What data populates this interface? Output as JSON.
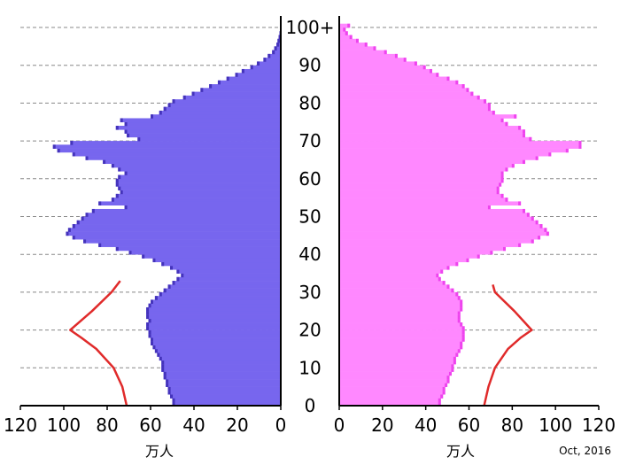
{
  "chart_data": {
    "type": "bar",
    "subtype": "population-pyramid",
    "unit_label": "万人",
    "date_note": "Oct, 2016",
    "age_axis": {
      "ticks": [
        "0",
        "10",
        "20",
        "30",
        "40",
        "50",
        "60",
        "70",
        "80",
        "90",
        "100+"
      ],
      "range": [
        0,
        100
      ],
      "gridlines": "dashed"
    },
    "x_ticks_left": [
      "120",
      "100",
      "80",
      "60",
      "40",
      "20",
      "0"
    ],
    "x_ticks_right": [
      "0",
      "20",
      "40",
      "60",
      "80",
      "100",
      "120"
    ],
    "xlim": [
      0,
      120
    ],
    "colors": {
      "male_fill": "#7766ee",
      "male_edge": "#4433bb",
      "female_fill": "#ff88ff",
      "female_edge": "#ee44ee",
      "overlay_line": "#e02a2a"
    },
    "series": [
      {
        "side": "left",
        "ages": [
          0,
          1,
          2,
          3,
          4,
          5,
          6,
          7,
          8,
          9,
          10,
          11,
          12,
          13,
          14,
          15,
          16,
          17,
          18,
          19,
          20,
          21,
          22,
          23,
          24,
          25,
          26,
          27,
          28,
          29,
          30,
          31,
          32,
          33,
          34,
          35,
          36,
          37,
          38,
          39,
          40,
          41,
          42,
          43,
          44,
          45,
          46,
          47,
          48,
          49,
          50,
          51,
          52,
          53,
          54,
          55,
          56,
          57,
          58,
          59,
          60,
          61,
          62,
          63,
          64,
          65,
          66,
          67,
          68,
          69,
          70,
          71,
          72,
          73,
          74,
          75,
          76,
          77,
          78,
          79,
          80,
          81,
          82,
          83,
          84,
          85,
          86,
          87,
          88,
          89,
          90,
          91,
          92,
          93,
          94,
          95,
          96,
          97,
          98,
          99,
          100
        ],
        "values": [
          50,
          50,
          51,
          52,
          52,
          53,
          53,
          54,
          54,
          55,
          55,
          55,
          56,
          57,
          58,
          59,
          60,
          60,
          61,
          61,
          62,
          62,
          61,
          62,
          62,
          62,
          61,
          60,
          58,
          56,
          54,
          52,
          50,
          48,
          46,
          48,
          51,
          55,
          59,
          64,
          70,
          76,
          84,
          91,
          96,
          99,
          98,
          96,
          94,
          92,
          90,
          87,
          72,
          84,
          78,
          76,
          74,
          75,
          76,
          76,
          75,
          72,
          75,
          78,
          82,
          90,
          96,
          103,
          105,
          97,
          66,
          71,
          72,
          76,
          72,
          74,
          60,
          56,
          54,
          52,
          50,
          45,
          41,
          37,
          33,
          29,
          25,
          21,
          18,
          14,
          11,
          8,
          6,
          4,
          3,
          2,
          1.5,
          1,
          0.6,
          0.3,
          0.2
        ]
      },
      {
        "side": "right",
        "ages": [
          0,
          1,
          2,
          3,
          4,
          5,
          6,
          7,
          8,
          9,
          10,
          11,
          12,
          13,
          14,
          15,
          16,
          17,
          18,
          19,
          20,
          21,
          22,
          23,
          24,
          25,
          26,
          27,
          28,
          29,
          30,
          31,
          32,
          33,
          34,
          35,
          36,
          37,
          38,
          39,
          40,
          41,
          42,
          43,
          44,
          45,
          46,
          47,
          48,
          49,
          50,
          51,
          52,
          53,
          54,
          55,
          56,
          57,
          58,
          59,
          60,
          61,
          62,
          63,
          64,
          65,
          66,
          67,
          68,
          69,
          70,
          71,
          72,
          73,
          74,
          75,
          76,
          77,
          78,
          79,
          80,
          81,
          82,
          83,
          84,
          85,
          86,
          87,
          88,
          89,
          90,
          91,
          92,
          93,
          94,
          95,
          96,
          97,
          98,
          99,
          100
        ],
        "values": [
          47,
          47,
          48,
          49,
          49,
          50,
          51,
          51,
          52,
          53,
          53,
          54,
          54,
          55,
          56,
          57,
          57,
          58,
          58,
          58,
          58,
          57,
          56,
          56,
          56,
          57,
          57,
          57,
          56,
          55,
          53,
          51,
          49,
          47,
          46,
          48,
          51,
          55,
          60,
          65,
          71,
          77,
          84,
          90,
          93,
          97,
          96,
          94,
          92,
          90,
          88,
          86,
          70,
          84,
          78,
          76,
          74,
          74,
          75,
          76,
          76,
          76,
          78,
          81,
          86,
          92,
          98,
          106,
          112,
          112,
          89,
          86,
          86,
          84,
          78,
          76,
          82,
          72,
          70,
          70,
          68,
          65,
          62,
          60,
          58,
          55,
          51,
          46,
          43,
          40,
          36,
          31,
          27,
          22,
          17,
          13,
          9,
          6,
          4,
          3,
          5
        ]
      }
    ],
    "overlay_lines": [
      {
        "side": "left",
        "ages": [
          0,
          5,
          10,
          15,
          18,
          20,
          25,
          30,
          33
        ],
        "values": [
          71,
          73,
          77,
          85,
          92,
          97,
          87,
          78,
          74
        ]
      },
      {
        "side": "right",
        "ages": [
          0,
          5,
          10,
          15,
          18,
          20,
          25,
          30,
          32
        ],
        "values": [
          67,
          69,
          72,
          78,
          84,
          89,
          81,
          72,
          71
        ]
      }
    ]
  }
}
